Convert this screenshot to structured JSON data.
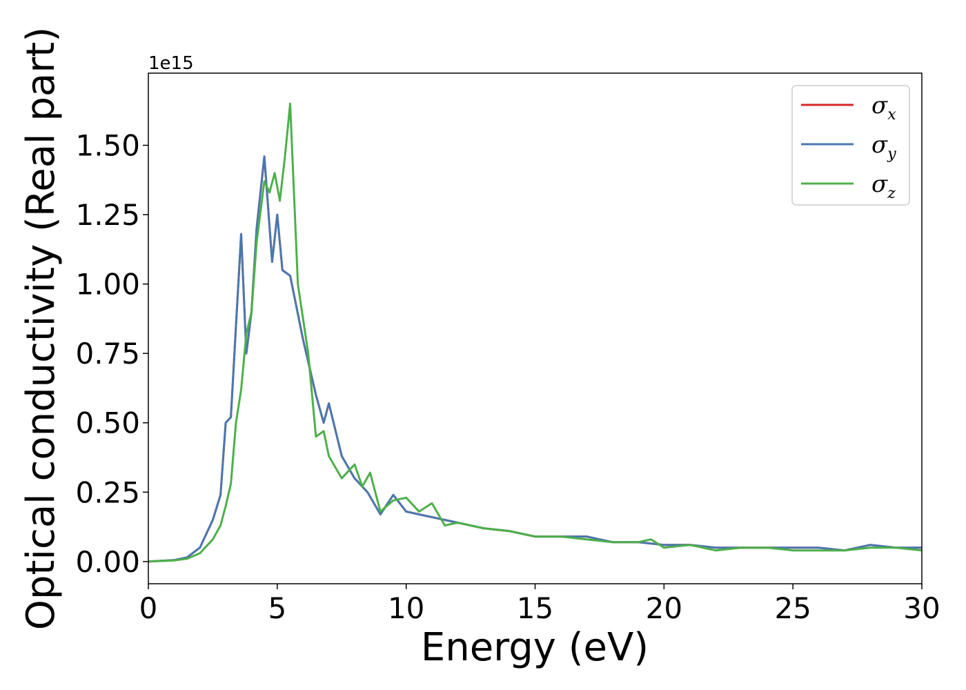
{
  "chart_data": {
    "type": "line",
    "xlabel": "Energy (eV)",
    "ylabel": "Optical conductivity (Real part)",
    "y_offset_label": "1e15",
    "xlim": [
      0,
      30
    ],
    "ylim": [
      -0.08,
      1.76
    ],
    "x_ticks": [
      0,
      5,
      10,
      15,
      20,
      25,
      30
    ],
    "x_tick_labels": [
      "0",
      "5",
      "10",
      "15",
      "20",
      "25",
      "30"
    ],
    "y_ticks": [
      0.0,
      0.25,
      0.5,
      0.75,
      1.0,
      1.25,
      1.5
    ],
    "y_tick_labels": [
      "0.00",
      "0.25",
      "0.50",
      "0.75",
      "1.00",
      "1.25",
      "1.50"
    ],
    "grid": false,
    "legend_position": "top-right",
    "legend": [
      {
        "symbol": "σ",
        "sub": "x",
        "color": "#d62728"
      },
      {
        "symbol": "σ",
        "sub": "y",
        "color": "#4a78b0"
      },
      {
        "symbol": "σ",
        "sub": "z",
        "color": "#4daf4a"
      }
    ],
    "series": [
      {
        "name": "σx",
        "color": "#d62728",
        "x": [
          0,
          1,
          1.5,
          2,
          2.5,
          2.8,
          3,
          3.2,
          3.4,
          3.6,
          3.8,
          4,
          4.2,
          4.5,
          4.8,
          5,
          5.2,
          5.5,
          6,
          6.5,
          6.8,
          7,
          7.5,
          8,
          8.5,
          9,
          9.5,
          10,
          10.5,
          11,
          12,
          13,
          14,
          15,
          16,
          17,
          18,
          19,
          20,
          21,
          22,
          23,
          24,
          25,
          26,
          27,
          28,
          29,
          30
        ],
        "y": [
          0,
          0.005,
          0.015,
          0.05,
          0.15,
          0.24,
          0.5,
          0.52,
          0.85,
          1.18,
          0.75,
          0.9,
          1.2,
          1.46,
          1.08,
          1.25,
          1.05,
          1.03,
          0.8,
          0.6,
          0.5,
          0.57,
          0.38,
          0.3,
          0.25,
          0.17,
          0.24,
          0.18,
          0.17,
          0.16,
          0.14,
          0.12,
          0.11,
          0.09,
          0.09,
          0.09,
          0.07,
          0.07,
          0.06,
          0.06,
          0.05,
          0.05,
          0.05,
          0.05,
          0.05,
          0.04,
          0.06,
          0.05,
          0.05
        ]
      },
      {
        "name": "σy",
        "color": "#4a78b0",
        "x": [
          0,
          1,
          1.5,
          2,
          2.5,
          2.8,
          3,
          3.2,
          3.4,
          3.6,
          3.8,
          4,
          4.2,
          4.5,
          4.8,
          5,
          5.2,
          5.5,
          6,
          6.5,
          6.8,
          7,
          7.5,
          8,
          8.5,
          9,
          9.5,
          10,
          10.5,
          11,
          12,
          13,
          14,
          15,
          16,
          17,
          18,
          19,
          20,
          21,
          22,
          23,
          24,
          25,
          26,
          27,
          28,
          29,
          30
        ],
        "y": [
          0,
          0.005,
          0.015,
          0.05,
          0.15,
          0.24,
          0.5,
          0.52,
          0.85,
          1.18,
          0.75,
          0.9,
          1.2,
          1.46,
          1.08,
          1.25,
          1.05,
          1.03,
          0.8,
          0.6,
          0.5,
          0.57,
          0.38,
          0.3,
          0.25,
          0.17,
          0.24,
          0.18,
          0.17,
          0.16,
          0.14,
          0.12,
          0.11,
          0.09,
          0.09,
          0.09,
          0.07,
          0.07,
          0.06,
          0.06,
          0.05,
          0.05,
          0.05,
          0.05,
          0.05,
          0.04,
          0.06,
          0.05,
          0.05
        ]
      },
      {
        "name": "σz",
        "color": "#4daf4a",
        "x": [
          0,
          1,
          1.5,
          2,
          2.5,
          2.8,
          3,
          3.2,
          3.4,
          3.6,
          3.8,
          4,
          4.2,
          4.5,
          4.7,
          4.9,
          5.1,
          5.3,
          5.5,
          5.8,
          6.2,
          6.5,
          6.8,
          7,
          7.5,
          8,
          8.3,
          8.6,
          9,
          9.5,
          10,
          10.5,
          11,
          11.5,
          12,
          13,
          14,
          15,
          16,
          17,
          18,
          19,
          19.5,
          20,
          21,
          22,
          23,
          24,
          25,
          26,
          27,
          28,
          29,
          30
        ],
        "y": [
          0,
          0.004,
          0.01,
          0.03,
          0.08,
          0.13,
          0.2,
          0.28,
          0.5,
          0.62,
          0.82,
          0.9,
          1.15,
          1.37,
          1.33,
          1.4,
          1.3,
          1.46,
          1.65,
          1.0,
          0.75,
          0.45,
          0.47,
          0.38,
          0.3,
          0.35,
          0.27,
          0.32,
          0.18,
          0.22,
          0.23,
          0.18,
          0.21,
          0.13,
          0.14,
          0.12,
          0.11,
          0.09,
          0.09,
          0.08,
          0.07,
          0.07,
          0.08,
          0.05,
          0.06,
          0.04,
          0.05,
          0.05,
          0.04,
          0.04,
          0.04,
          0.05,
          0.05,
          0.04
        ]
      }
    ]
  }
}
